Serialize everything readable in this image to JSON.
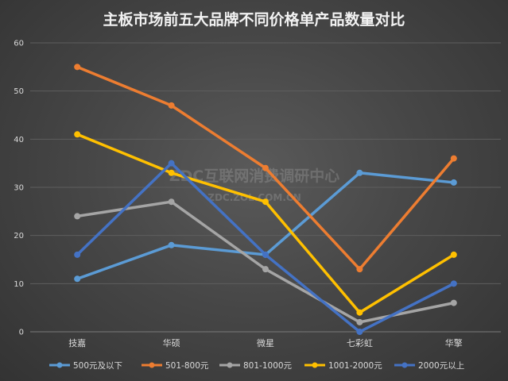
{
  "watermark": {
    "line1": "ZDC互联网消费调研中心",
    "line2": "ZDC.ZOL.COM.CN"
  },
  "colors": {
    "grid": "#5e5e5e",
    "axis": "#7a7a7a"
  },
  "chart_data": {
    "type": "line",
    "title": "主板市场前五大品牌不同价格单产品数量对比",
    "xlabel": "",
    "ylabel": "",
    "categories": [
      "技嘉",
      "华硕",
      "微星",
      "七彩虹",
      "华擎"
    ],
    "ylim": [
      0,
      60
    ],
    "yticks": [
      0,
      10,
      20,
      30,
      40,
      50,
      60
    ],
    "grid": true,
    "legend_position": "bottom",
    "series": [
      {
        "name": "500元及以下",
        "color": "#5b9bd5",
        "values": [
          11,
          18,
          16,
          33,
          31
        ]
      },
      {
        "name": "501-800元",
        "color": "#ed7d31",
        "values": [
          55,
          47,
          34,
          13,
          36
        ]
      },
      {
        "name": "801-1000元",
        "color": "#a5a5a5",
        "values": [
          24,
          27,
          13,
          2,
          6
        ]
      },
      {
        "name": "1001-2000元",
        "color": "#ffc000",
        "values": [
          41,
          33,
          27,
          4,
          16
        ]
      },
      {
        "name": "2000元以上",
        "color": "#4472c4",
        "values": [
          16,
          35,
          16,
          0,
          10
        ]
      }
    ]
  }
}
